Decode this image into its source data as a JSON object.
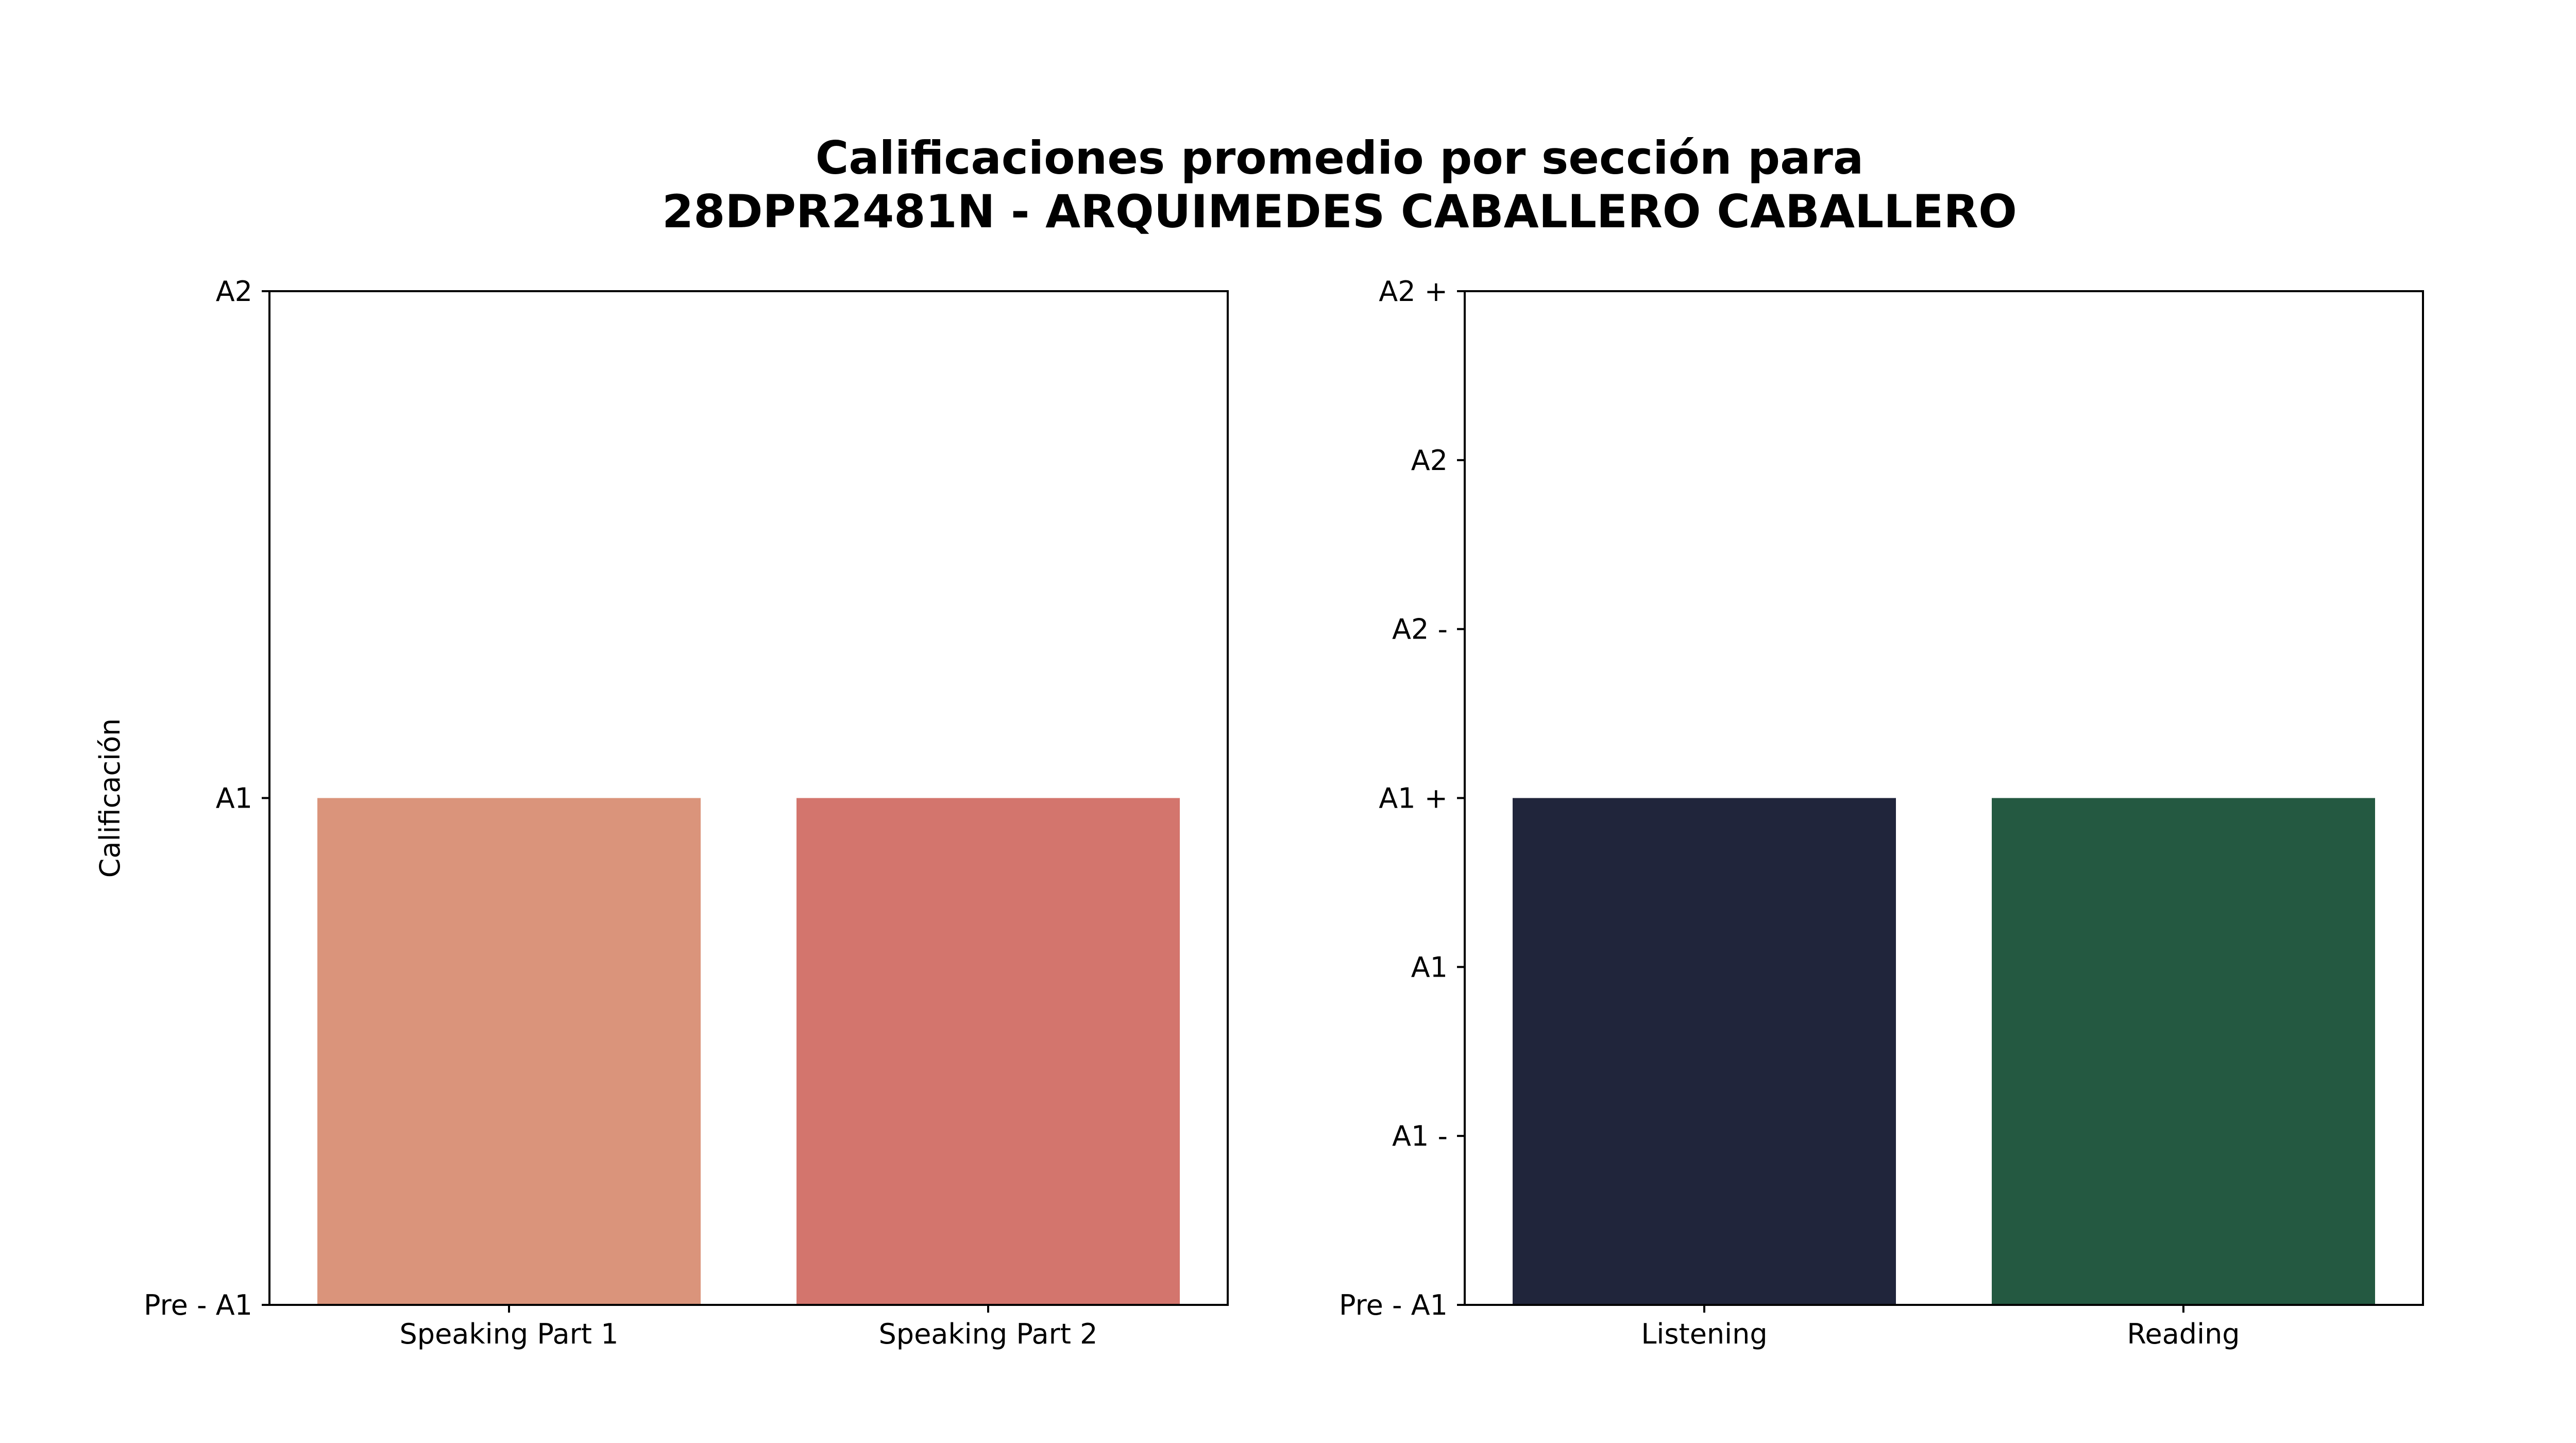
{
  "title": {
    "line1": "Calificaciones promedio por sección para",
    "line2": "28DPR2481N - ARQUIMEDES CABALLERO CABALLERO"
  },
  "chart_data": [
    {
      "type": "bar",
      "ylabel": "Calificación",
      "xlabel": "",
      "categories": [
        "Speaking Part 1",
        "Speaking Part 2"
      ],
      "values": [
        1,
        1
      ],
      "value_labels": [
        "A1",
        "A1"
      ],
      "yticks": [
        {
          "value": 0,
          "label": "Pre - A1"
        },
        {
          "value": 1,
          "label": "A1"
        },
        {
          "value": 2,
          "label": "A2"
        }
      ],
      "ylim": [
        0,
        2
      ],
      "colors": [
        "#da947b",
        "#d3756d"
      ],
      "grid": false
    },
    {
      "type": "bar",
      "xlabel": "",
      "categories": [
        "Listening",
        "Reading"
      ],
      "values": [
        3,
        3
      ],
      "value_labels": [
        "A1 +",
        "A1 +"
      ],
      "yticks": [
        {
          "value": 0,
          "label": "Pre - A1"
        },
        {
          "value": 1,
          "label": "A1 -"
        },
        {
          "value": 2,
          "label": "A1"
        },
        {
          "value": 3,
          "label": "A1 +"
        },
        {
          "value": 4,
          "label": "A2 -"
        },
        {
          "value": 5,
          "label": "A2"
        },
        {
          "value": 6,
          "label": "A2 +"
        }
      ],
      "ylim": [
        0,
        6
      ],
      "colors": [
        "#20253b",
        "#245941"
      ],
      "grid": false
    }
  ]
}
